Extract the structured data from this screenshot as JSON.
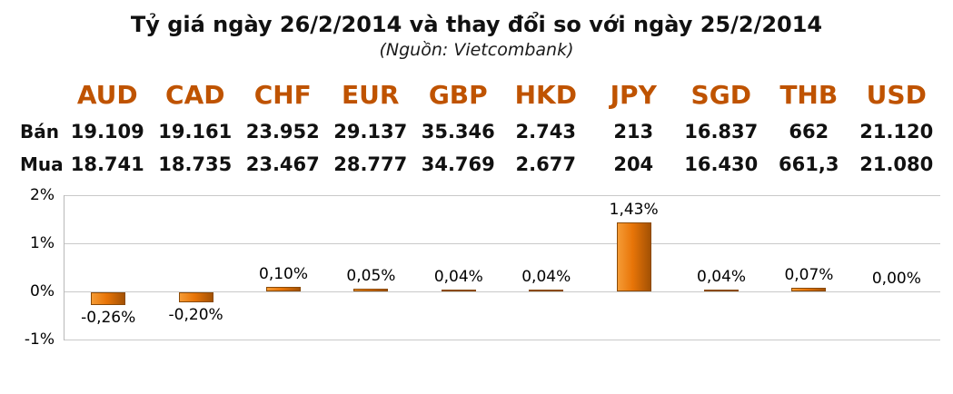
{
  "title": "Tỷ giá ngày 26/2/2014 và thay đổi so với ngày 25/2/2014",
  "subtitle": "(Nguồn: Vietcombank)",
  "table": {
    "currencies": [
      "AUD",
      "CAD",
      "CHF",
      "EUR",
      "GBP",
      "HKD",
      "JPY",
      "SGD",
      "THB",
      "USD"
    ],
    "rows": [
      {
        "label": "Bán",
        "values": [
          "19.109",
          "19.161",
          "23.952",
          "29.137",
          "35.346",
          "2.743",
          "213",
          "16.837",
          "662",
          "21.120"
        ]
      },
      {
        "label": "Mua",
        "values": [
          "18.741",
          "18.735",
          "23.467",
          "28.777",
          "34.769",
          "2.677",
          "204",
          "16.430",
          "661,3",
          "21.080"
        ]
      }
    ]
  },
  "chart_data": {
    "type": "bar",
    "title": "",
    "xlabel": "",
    "ylabel": "",
    "categories": [
      "AUD",
      "CAD",
      "CHF",
      "EUR",
      "GBP",
      "HKD",
      "JPY",
      "SGD",
      "THB",
      "USD"
    ],
    "values": [
      -0.26,
      -0.2,
      0.1,
      0.05,
      0.04,
      0.04,
      1.43,
      0.04,
      0.07,
      0.0
    ],
    "labels": [
      "-0,26%",
      "-0,20%",
      "0,10%",
      "0,05%",
      "0,04%",
      "0,04%",
      "1,43%",
      "0,04%",
      "0,07%",
      "0,00%"
    ],
    "ylim": [
      -1,
      2
    ],
    "yticks": [
      "2%",
      "1%",
      "0%",
      "-1%"
    ],
    "grid": true,
    "legend": "none",
    "bar_color": "#e87508"
  }
}
